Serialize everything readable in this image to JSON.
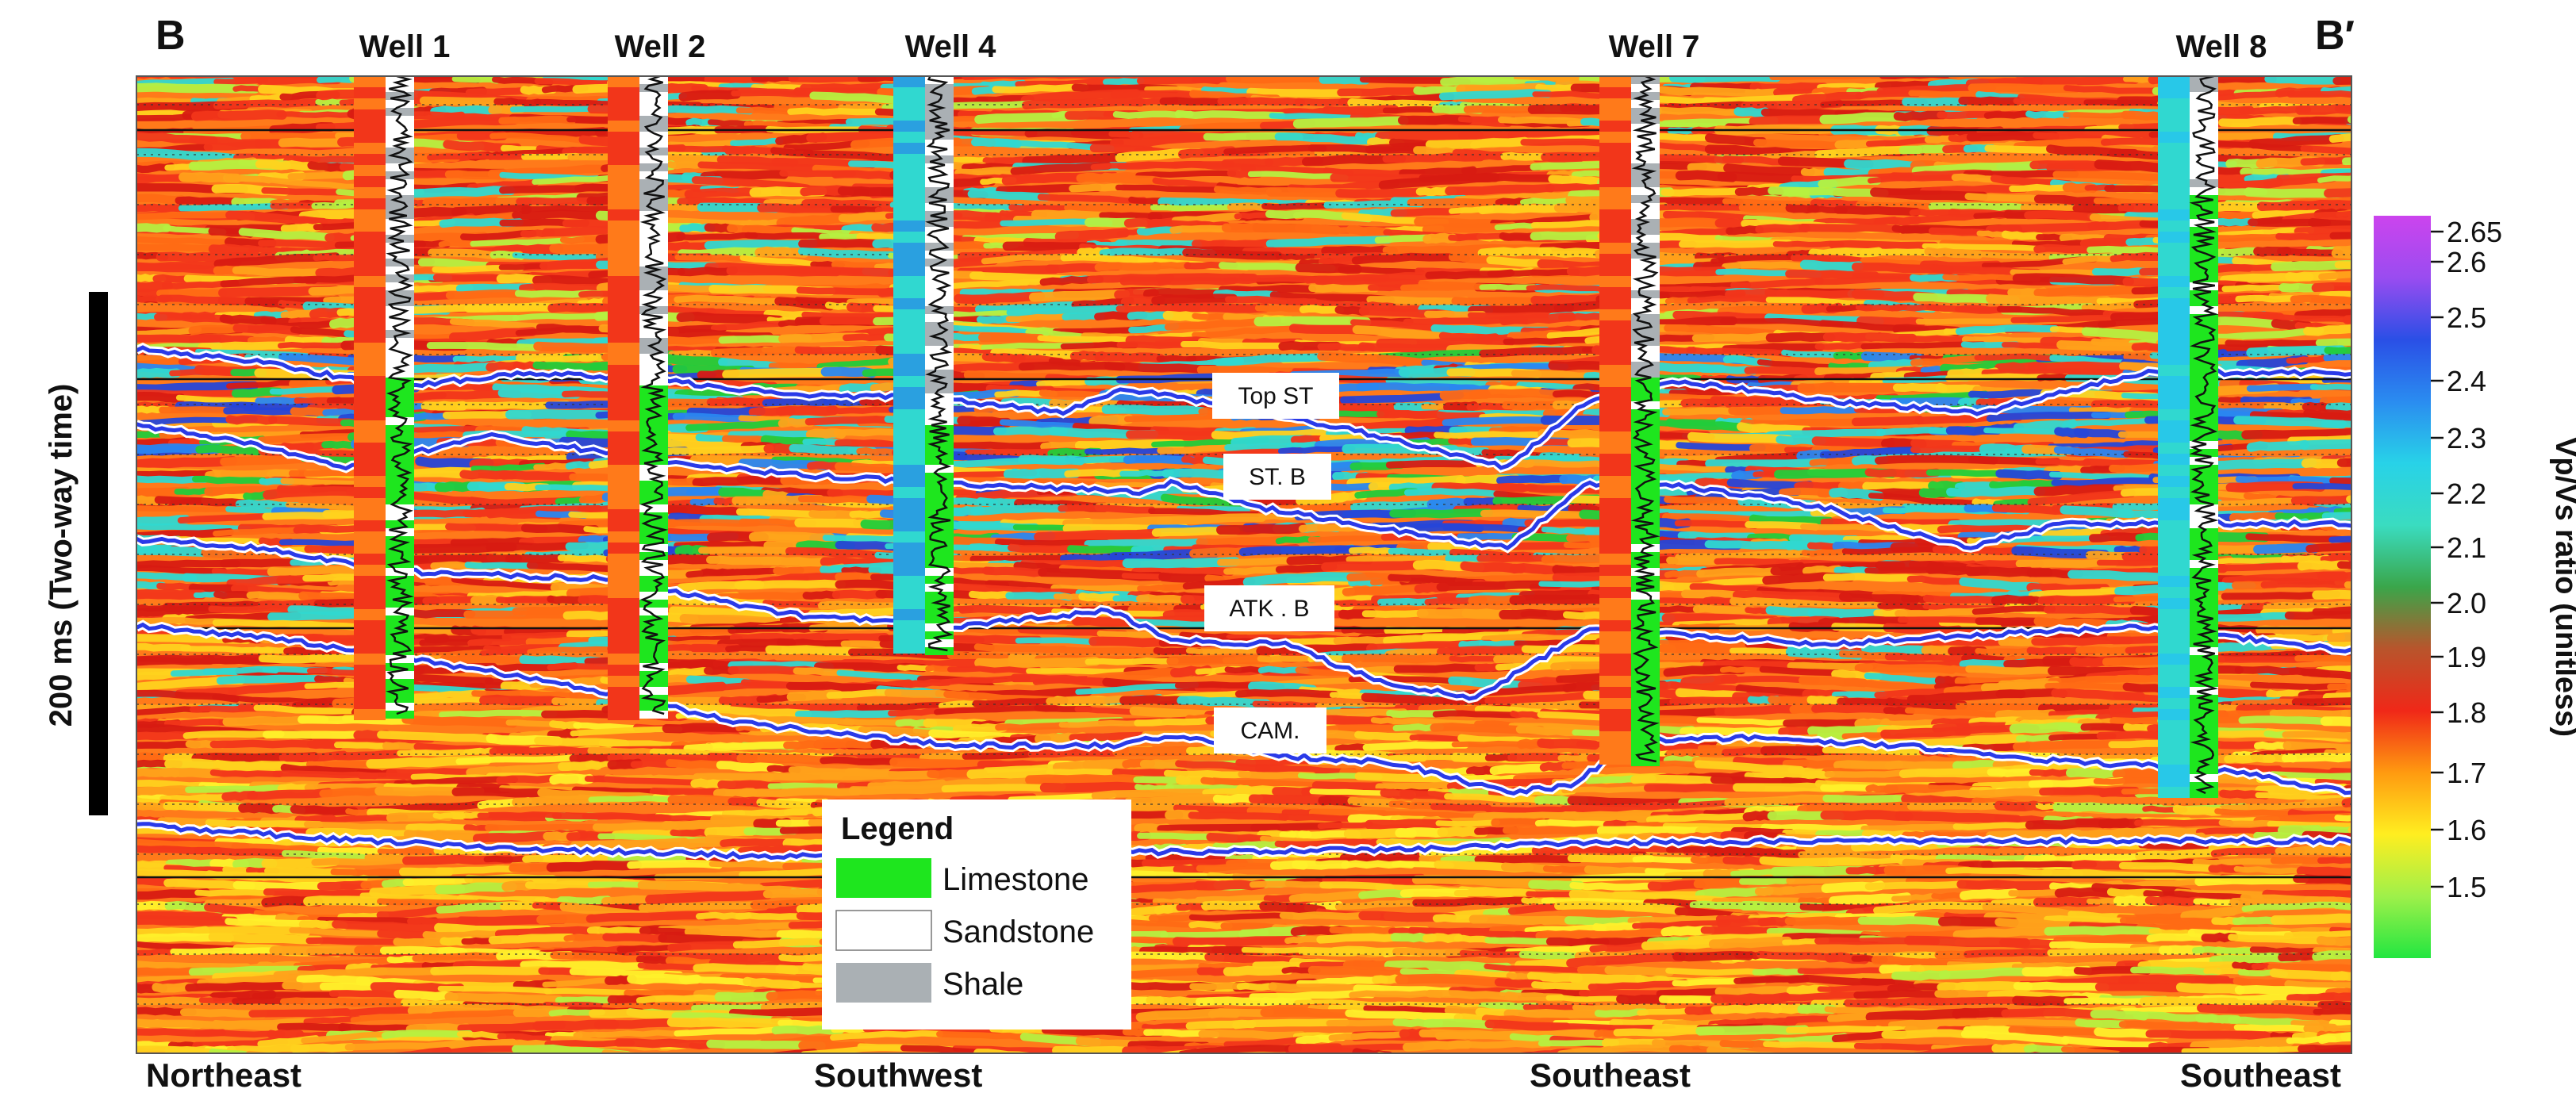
{
  "section": {
    "left_label": "B",
    "right_label": "B′"
  },
  "wells": [
    {
      "name": "Well 1"
    },
    {
      "name": "Well 2"
    },
    {
      "name": "Well 4"
    },
    {
      "name": "Well 7"
    },
    {
      "name": "Well 8"
    }
  ],
  "directions": [
    "Northeast",
    "Southwest",
    "Southeast",
    "Southeast"
  ],
  "horizons": [
    {
      "name": "Top ST"
    },
    {
      "name": "ST. B"
    },
    {
      "name": "ATK . B"
    },
    {
      "name": "CAM."
    }
  ],
  "time_scale": {
    "label": "200 ms (Two-way time)"
  },
  "colorbar": {
    "title": "Vp/Vs ratio (unitless)",
    "ticks": [
      "2.65",
      "2.6",
      "2.5",
      "2.4",
      "2.3",
      "2.2",
      "2.1",
      "2.0",
      "1.9",
      "1.8",
      "1.7",
      "1.6",
      "1.5"
    ],
    "colors": [
      "#cc44ee",
      "#9a4cf0",
      "#2a4fe6",
      "#2a8cf0",
      "#28d2e8",
      "#3adcc0",
      "#3aa64a",
      "#b8552c",
      "#f02818",
      "#ff9a10",
      "#ffee20",
      "#9ef04a",
      "#22e640"
    ]
  },
  "legend": {
    "title": "Legend",
    "items": [
      {
        "label": "Limestone",
        "color": "#1ee61e"
      },
      {
        "label": "Sandstone",
        "color": "#ffffff"
      },
      {
        "label": "Shale",
        "color": "#aab0b4"
      }
    ]
  },
  "palette": {
    "seismic": [
      "#d81b12",
      "#f2361a",
      "#ff6a14",
      "#ffa21a",
      "#ffd21e",
      "#fff02a",
      "#b6f040",
      "#22cc3a",
      "#30d8d0",
      "#2a86f0",
      "#2646d8",
      "#8a3aea"
    ],
    "horizon_line": "#2a3ae8",
    "log_curve": "#111111"
  }
}
